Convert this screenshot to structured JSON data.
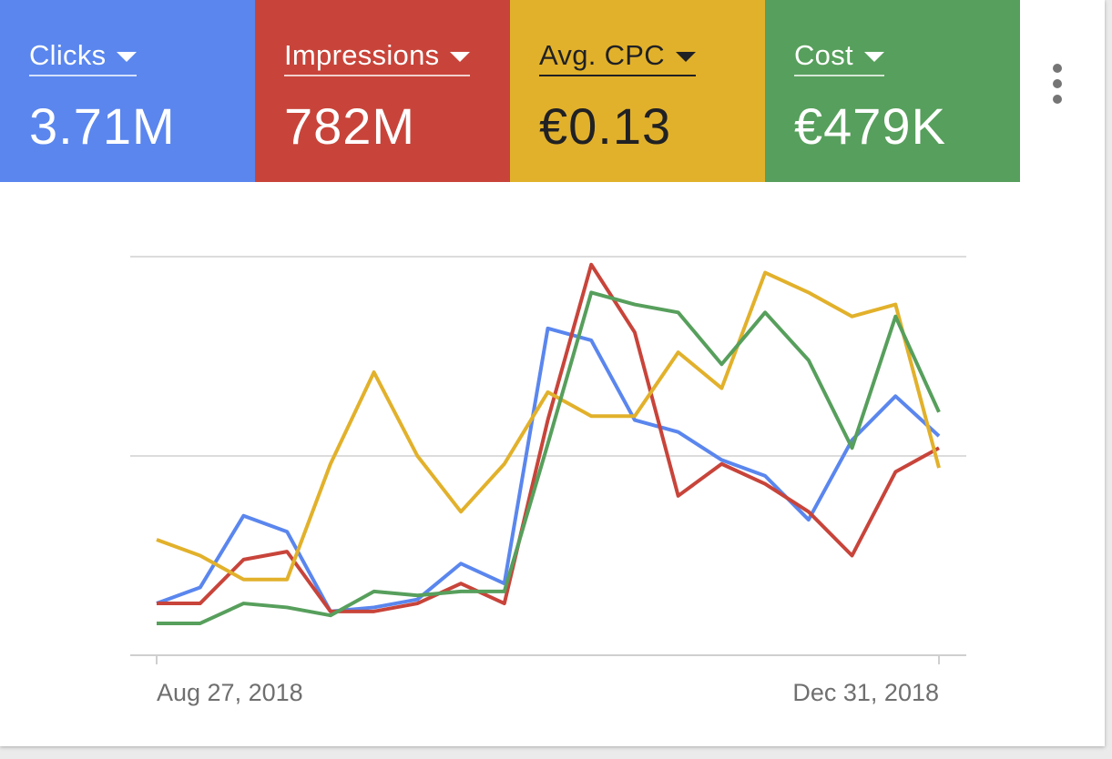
{
  "tiles": [
    {
      "label": "Clicks",
      "value": "3.71M",
      "color": "#5a86ee"
    },
    {
      "label": "Impressions",
      "value": "782M",
      "color": "#c8443a"
    },
    {
      "label": "Avg. CPC",
      "value": "€0.13",
      "color": "#e2b12b"
    },
    {
      "label": "Cost",
      "value": "€479K",
      "color": "#579f5c"
    }
  ],
  "menu": {
    "icon": "more-vert-icon"
  },
  "chart_data": {
    "type": "line",
    "x_tick_labels": [
      "Aug 27, 2018",
      "Dec 31, 2018"
    ],
    "x_count": 19,
    "gridlines": 3,
    "ylim": [
      0,
      100
    ],
    "series": [
      {
        "name": "Clicks",
        "color": "#5a86ee",
        "values": [
          13,
          17,
          35,
          31,
          11,
          12,
          14,
          23,
          18,
          82,
          79,
          59,
          56,
          49,
          45,
          34,
          54,
          65,
          55
        ]
      },
      {
        "name": "Impressions",
        "color": "#c8443a",
        "values": [
          13,
          13,
          24,
          26,
          11,
          11,
          13,
          18,
          13,
          59,
          98,
          81,
          40,
          48,
          43,
          36,
          25,
          46,
          52
        ]
      },
      {
        "name": "Avg. CPC",
        "color": "#e2b12b",
        "values": [
          29,
          25,
          19,
          19,
          48,
          71,
          50,
          36,
          48,
          66,
          60,
          60,
          76,
          67,
          96,
          91,
          85,
          88,
          47
        ]
      },
      {
        "name": "Cost",
        "color": "#579f5c",
        "values": [
          8,
          8,
          13,
          12,
          10,
          16,
          15,
          16,
          16,
          53,
          91,
          88,
          86,
          73,
          86,
          74,
          52,
          85,
          61
        ]
      }
    ]
  }
}
